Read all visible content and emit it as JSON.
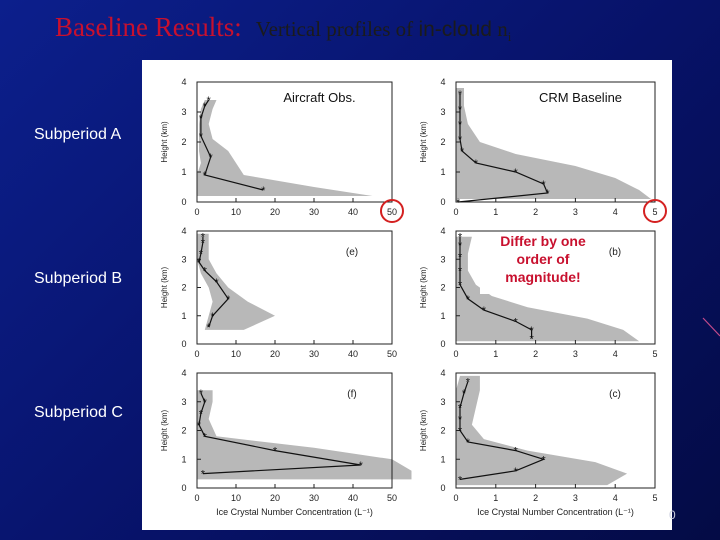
{
  "slide": {
    "title_main": "Baseline Results:",
    "title_sub_serif": "Vertical profiles of",
    "title_sub_sans": "in-cloud",
    "title_var": "n",
    "title_var_sub": "i",
    "row_labels": [
      "Subperiod A",
      "Subperiod B",
      "Subperiod C"
    ],
    "slide_number": "0",
    "annotation": "Differ by one\norder of\nmagnitude!",
    "col_titles": [
      "Aircraft Obs.",
      "CRM Baseline"
    ],
    "colors": {
      "title": "#c8102e",
      "background": "#0c1f8c",
      "band": "#b8b8b8",
      "circle": "#d42020"
    }
  },
  "chart_data": [
    {
      "type": "line",
      "panel": "top-left",
      "xlabel": "",
      "ylabel": "Height (km)",
      "xlim": [
        0,
        50
      ],
      "ylim": [
        0,
        4
      ],
      "xticks": [
        "0",
        "10",
        "20",
        "30",
        "40",
        "50"
      ],
      "yticks": [
        "0",
        "1",
        "2",
        "3",
        "4"
      ],
      "panel_label": "",
      "col_title": "Aircraft Obs.",
      "highlight_tick": "50",
      "series": [
        {
          "x": [
            17,
            2,
            3.5,
            1,
            1,
            2,
            3
          ],
          "y": [
            0.4,
            0.9,
            1.5,
            2.2,
            2.8,
            3.2,
            3.4
          ]
        }
      ],
      "band": {
        "y": [
          0.2,
          0.5,
          0.9,
          1.3,
          1.7,
          2.1,
          2.6,
          3.1,
          3.4
        ],
        "lo": [
          0,
          0,
          0,
          1,
          0.5,
          0.5,
          0.5,
          1,
          2
        ],
        "hi": [
          45,
          30,
          12,
          10,
          8,
          4,
          3,
          4,
          5
        ]
      }
    },
    {
      "type": "line",
      "panel": "top-right",
      "xlabel": "",
      "ylabel": "Height (km)",
      "xlim": [
        0,
        5
      ],
      "ylim": [
        0,
        4
      ],
      "xticks": [
        "0",
        "1",
        "2",
        "3",
        "4",
        "5"
      ],
      "yticks": [
        "0",
        "1",
        "2",
        "3",
        "4"
      ],
      "panel_label": "",
      "col_title": "CRM Baseline",
      "highlight_tick": "5",
      "series": [
        {
          "x": [
            0.05,
            2.3,
            2.2,
            1.5,
            0.5,
            0.15,
            0.1,
            0.1,
            0.1,
            0.1
          ],
          "y": [
            0,
            0.3,
            0.6,
            1.0,
            1.3,
            1.7,
            2.1,
            2.6,
            3.1,
            3.6
          ]
        }
      ],
      "band": {
        "y": [
          0.1,
          0.4,
          0.8,
          1.2,
          1.6,
          2.0,
          2.6,
          3.2,
          3.8
        ],
        "lo": [
          0,
          0,
          0,
          0,
          0,
          0,
          0,
          0,
          0
        ],
        "hi": [
          4.9,
          4.6,
          4.0,
          3.0,
          1.5,
          0.6,
          0.3,
          0.2,
          0.2
        ]
      }
    },
    {
      "type": "line",
      "panel": "(e)",
      "xlabel": "",
      "ylabel": "Height (km)",
      "xlim": [
        0,
        50
      ],
      "ylim": [
        0,
        4
      ],
      "xticks": [
        "0",
        "10",
        "20",
        "30",
        "40",
        "50"
      ],
      "yticks": [
        "0",
        "1",
        "2",
        "3",
        "4"
      ],
      "panel_label": "(e)",
      "col_title": "",
      "series": [
        {
          "x": [
            3,
            4,
            8,
            5,
            2,
            0.5,
            1,
            1.5,
            1.5
          ],
          "y": [
            0.6,
            1.0,
            1.6,
            2.2,
            2.6,
            2.9,
            3.2,
            3.6,
            3.8
          ]
        }
      ],
      "band": {
        "y": [
          0.5,
          1.0,
          1.5,
          2.0,
          2.5,
          3.0,
          3.5,
          3.9
        ],
        "lo": [
          2,
          3,
          4,
          3,
          1,
          0,
          0,
          0
        ],
        "hi": [
          12,
          20,
          13,
          8,
          5,
          3,
          3,
          3
        ]
      }
    },
    {
      "type": "line",
      "panel": "(b)",
      "xlabel": "",
      "ylabel": "Height (km)",
      "xlim": [
        0,
        5
      ],
      "ylim": [
        0,
        4
      ],
      "xticks": [
        "0",
        "1",
        "2",
        "3",
        "4",
        "5"
      ],
      "yticks": [
        "0",
        "1",
        "2",
        "3",
        "4"
      ],
      "panel_label": "(b)",
      "col_title": "",
      "series": [
        {
          "x": [
            1.9,
            1.9,
            1.5,
            0.7,
            0.3,
            0.1,
            0.1,
            0.1,
            0.1,
            0.1
          ],
          "y": [
            0.2,
            0.5,
            0.8,
            1.2,
            1.6,
            2.1,
            2.6,
            3.1,
            3.5,
            3.8
          ]
        }
      ],
      "band": {
        "y": [
          0.1,
          0.5,
          0.9,
          1.3,
          1.7,
          2.1,
          2.6,
          3.2,
          3.8
        ],
        "lo": [
          0,
          0,
          0,
          0,
          0,
          0,
          0,
          0,
          0
        ],
        "hi": [
          4.6,
          4.2,
          3.3,
          1.8,
          0.9,
          0.5,
          0.3,
          0.3,
          0.4
        ]
      }
    },
    {
      "type": "line",
      "panel": "(f)",
      "xlabel": "Ice Crystal Number Concentration (L⁻¹)",
      "ylabel": "Height (km)",
      "xlim": [
        0,
        50
      ],
      "ylim": [
        0,
        4
      ],
      "xticks": [
        "0",
        "10",
        "20",
        "30",
        "40",
        "50"
      ],
      "yticks": [
        "0",
        "1",
        "2",
        "3",
        "4"
      ],
      "panel_label": "(f)",
      "col_title": "",
      "series": [
        {
          "x": [
            1.5,
            42,
            20,
            2,
            0.5,
            1,
            2,
            1
          ],
          "y": [
            0.5,
            0.8,
            1.3,
            1.8,
            2.2,
            2.6,
            3.0,
            3.3
          ]
        }
      ],
      "band": {
        "y": [
          0.3,
          0.6,
          1.0,
          1.4,
          1.8,
          2.4,
          3.0,
          3.4
        ],
        "lo": [
          0,
          0,
          0,
          0,
          0,
          0,
          0,
          0
        ],
        "hi": [
          55,
          55,
          50,
          30,
          5,
          3,
          4,
          4
        ]
      }
    },
    {
      "type": "line",
      "panel": "(c)",
      "xlabel": "Ice Crystal Number Concentration (L⁻¹)",
      "ylabel": "Height (km)",
      "xlim": [
        0,
        5
      ],
      "ylim": [
        0,
        4
      ],
      "xticks": [
        "0",
        "1",
        "2",
        "3",
        "4",
        "5"
      ],
      "yticks": [
        "0",
        "1",
        "2",
        "3",
        "4"
      ],
      "panel_label": "(c)",
      "col_title": "",
      "series": [
        {
          "x": [
            0.1,
            1.5,
            2.2,
            1.5,
            0.3,
            0.1,
            0.1,
            0.1,
            0.2,
            0.3
          ],
          "y": [
            0.3,
            0.6,
            1.0,
            1.3,
            1.6,
            2.0,
            2.4,
            2.8,
            3.3,
            3.7
          ]
        }
      ],
      "band": {
        "y": [
          0.1,
          0.5,
          0.9,
          1.3,
          1.7,
          2.2,
          2.8,
          3.4,
          3.9
        ],
        "lo": [
          0,
          0,
          0,
          0,
          0,
          0,
          0,
          0,
          0.1
        ],
        "hi": [
          3.8,
          4.3,
          3.5,
          1.8,
          0.7,
          0.4,
          0.5,
          0.6,
          0.6
        ]
      }
    }
  ]
}
